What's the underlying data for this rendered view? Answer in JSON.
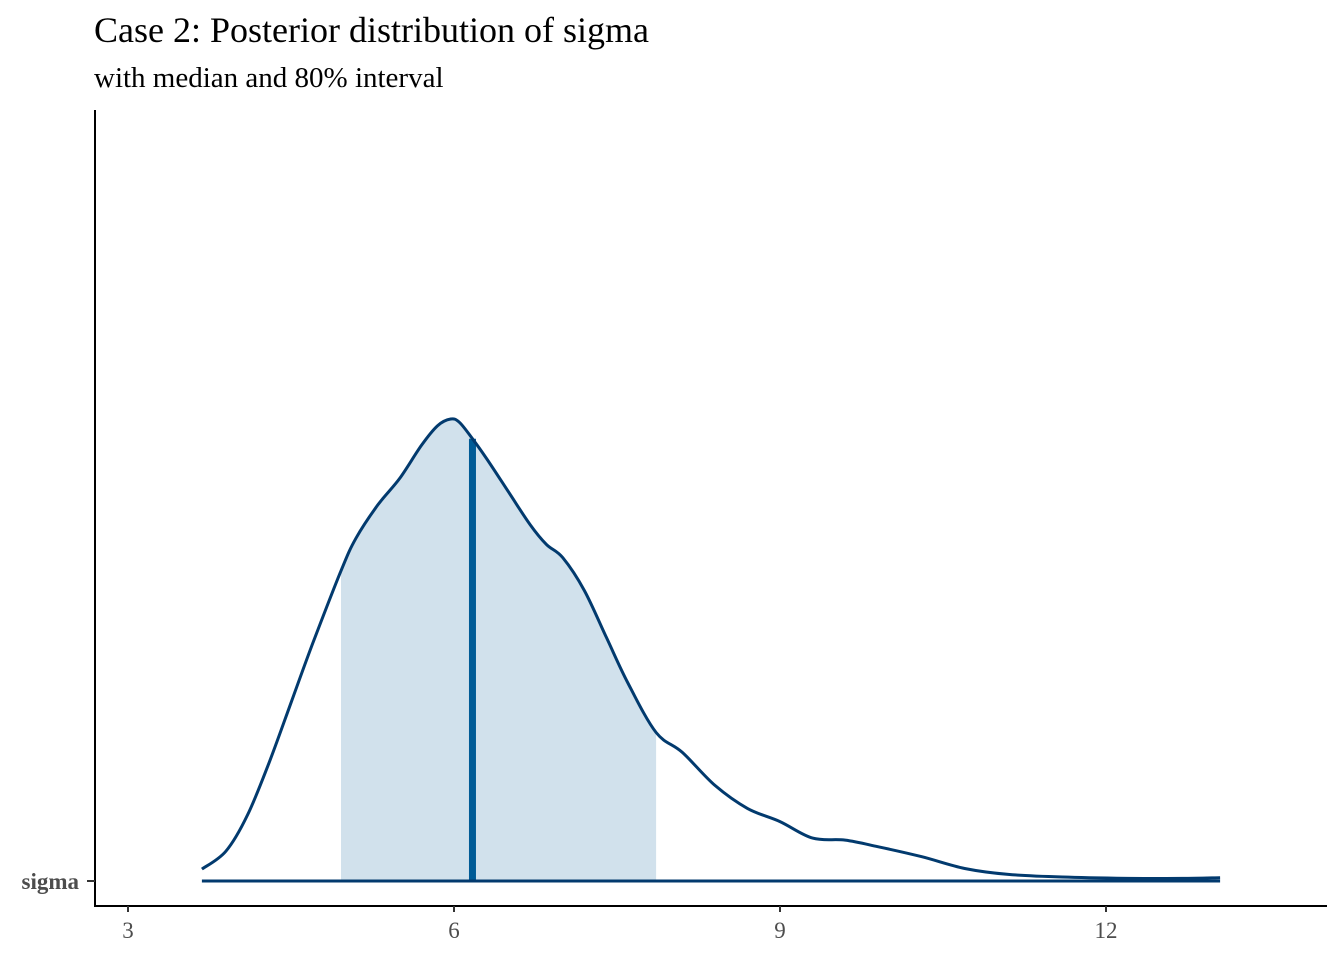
{
  "chart_data": {
    "type": "area",
    "title": "Case 2: Posterior distribution of sigma",
    "subtitle": "with median and 80% interval",
    "xlabel": "",
    "ylabel": "",
    "xlim": [
      2.7,
      14.0
    ],
    "x_ticks": [
      3,
      6,
      9,
      12
    ],
    "x_tick_labels": [
      "3",
      "6",
      "9",
      "12"
    ],
    "y_categories": [
      "sigma"
    ],
    "parameter": "sigma",
    "median": 6.17,
    "interval_80": [
      4.96,
      7.86
    ],
    "density": {
      "x": [
        3.68,
        3.9,
        4.1,
        4.3,
        4.5,
        4.7,
        4.96,
        5.1,
        5.3,
        5.5,
        5.7,
        5.85,
        5.97,
        6.05,
        6.17,
        6.3,
        6.5,
        6.7,
        6.85,
        7.0,
        7.2,
        7.4,
        7.6,
        7.86,
        8.1,
        8.4,
        8.7,
        9.0,
        9.3,
        9.6,
        9.9,
        10.3,
        10.7,
        11.1,
        11.6,
        12.2,
        12.7,
        13.05
      ],
      "y": [
        0.018,
        0.045,
        0.1,
        0.18,
        0.27,
        0.36,
        0.47,
        0.52,
        0.57,
        0.61,
        0.66,
        0.69,
        0.7,
        0.695,
        0.67,
        0.64,
        0.59,
        0.54,
        0.51,
        0.49,
        0.44,
        0.37,
        0.3,
        0.225,
        0.195,
        0.145,
        0.11,
        0.09,
        0.065,
        0.062,
        0.052,
        0.037,
        0.019,
        0.01,
        0.006,
        0.004,
        0.004,
        0.005
      ]
    },
    "grid": false,
    "legend": "none",
    "colors": {
      "outline": "#023a6e",
      "interval_fill": "#d1e1ec",
      "median_line": "#005b96",
      "axis": "#000000",
      "tick_label": "#4d4d4d"
    }
  }
}
